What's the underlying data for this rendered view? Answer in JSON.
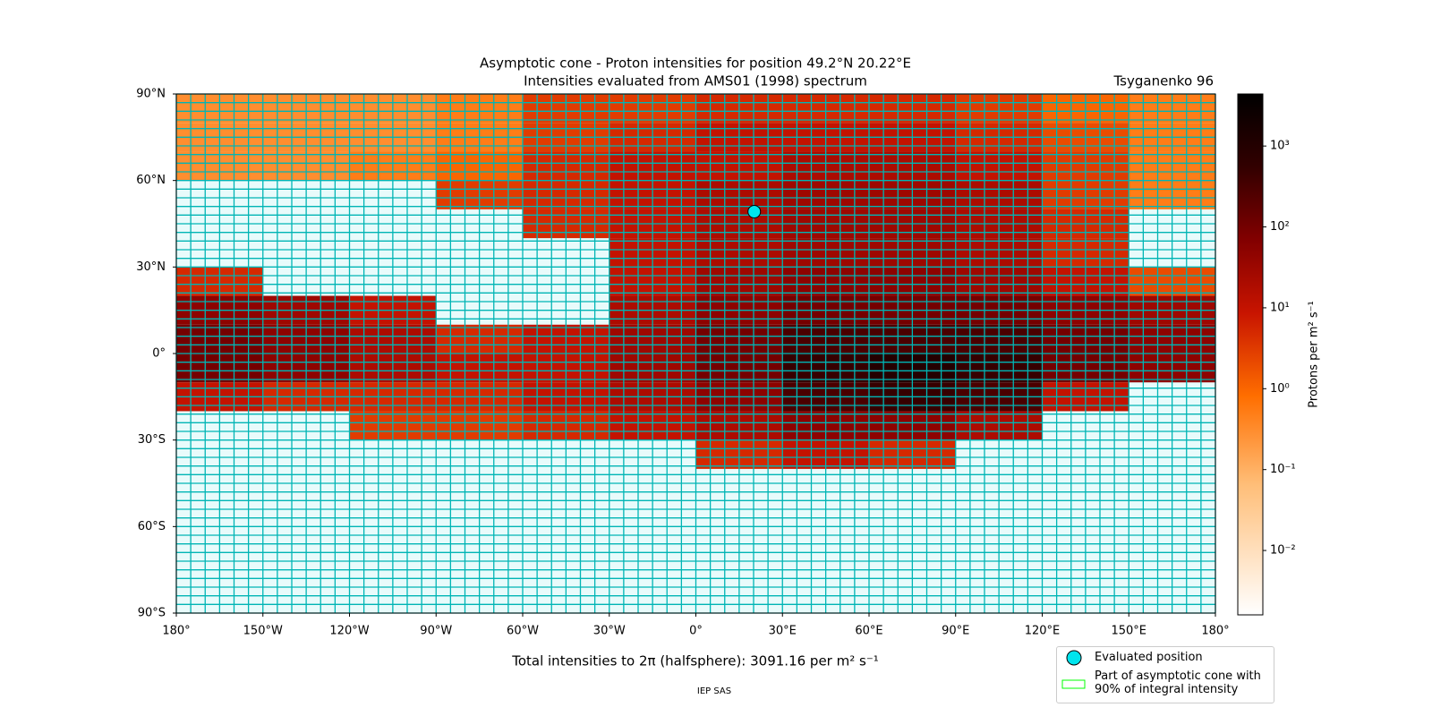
{
  "chart_data": {
    "type": "heatmap",
    "title": "Asymptotic cone - Proton intensities for position 49.2°N 20.22°E",
    "subtitle": "Intensities evaluated from AMS01 (1998) spectrum",
    "model": "Tsyganenko 96",
    "colorbar_label": "Protons per m² s⁻¹",
    "footer": "Total intensities to 2π (halfsphere): 3091.16 per m² s⁻¹",
    "credit": "IEP SAS",
    "lon_edges": [
      -180,
      -150,
      -120,
      -90,
      -60,
      -30,
      0,
      30,
      60,
      90,
      120,
      150,
      180
    ],
    "lat_edges": [
      90,
      80,
      70,
      60,
      50,
      40,
      30,
      20,
      10,
      0,
      -10,
      -20,
      -30,
      -40,
      -50,
      -60,
      -70,
      -80,
      -90
    ],
    "values": [
      [
        0.3,
        0.3,
        0.3,
        0.5,
        3,
        3,
        5,
        5,
        5,
        3,
        1,
        0.5
      ],
      [
        0.3,
        0.3,
        0.3,
        0.5,
        3,
        5,
        10,
        10,
        10,
        5,
        2,
        0.5
      ],
      [
        0.3,
        0.3,
        0.5,
        1,
        5,
        10,
        10,
        20,
        20,
        10,
        3,
        0.5
      ],
      [
        null,
        null,
        null,
        3,
        5,
        10,
        20,
        30,
        30,
        20,
        3,
        0.5
      ],
      [
        null,
        null,
        null,
        null,
        5,
        10,
        20,
        30,
        30,
        20,
        5,
        null
      ],
      [
        null,
        null,
        null,
        null,
        null,
        10,
        20,
        30,
        30,
        20,
        5,
        null
      ],
      [
        5,
        null,
        null,
        null,
        null,
        10,
        30,
        50,
        50,
        30,
        10,
        2
      ],
      [
        50,
        30,
        10,
        null,
        null,
        20,
        50,
        100,
        100,
        100,
        50,
        30
      ],
      [
        100,
        50,
        20,
        5,
        10,
        30,
        100,
        300,
        300,
        300,
        100,
        50
      ],
      [
        100,
        50,
        20,
        10,
        10,
        30,
        100,
        500,
        1000,
        500,
        100,
        50
      ],
      [
        10,
        5,
        5,
        5,
        10,
        20,
        50,
        300,
        500,
        300,
        10,
        null
      ],
      [
        null,
        null,
        3,
        3,
        5,
        10,
        20,
        50,
        50,
        20,
        null,
        null
      ],
      [
        null,
        null,
        null,
        null,
        null,
        null,
        5,
        10,
        5,
        null,
        null,
        null
      ],
      [
        null,
        null,
        null,
        null,
        null,
        null,
        null,
        null,
        null,
        null,
        null,
        null
      ],
      [
        null,
        null,
        null,
        null,
        null,
        null,
        null,
        null,
        null,
        null,
        null,
        null
      ],
      [
        null,
        null,
        null,
        null,
        null,
        null,
        null,
        null,
        null,
        null,
        null,
        null
      ],
      [
        null,
        null,
        null,
        null,
        null,
        null,
        null,
        null,
        null,
        null,
        null,
        null
      ],
      [
        null,
        null,
        null,
        null,
        null,
        null,
        null,
        null,
        null,
        null,
        null,
        null
      ]
    ],
    "xlim": [
      -180,
      180
    ],
    "ylim": [
      -90,
      90
    ],
    "xticks": [
      {
        "value": -180,
        "label": "180°"
      },
      {
        "value": -150,
        "label": "150°W"
      },
      {
        "value": -120,
        "label": "120°W"
      },
      {
        "value": -90,
        "label": "90°W"
      },
      {
        "value": -60,
        "label": "60°W"
      },
      {
        "value": -30,
        "label": "30°W"
      },
      {
        "value": 0,
        "label": "0°"
      },
      {
        "value": 30,
        "label": "30°E"
      },
      {
        "value": 60,
        "label": "60°E"
      },
      {
        "value": 90,
        "label": "90°E"
      },
      {
        "value": 120,
        "label": "120°E"
      },
      {
        "value": 150,
        "label": "150°E"
      },
      {
        "value": 180,
        "label": "180°"
      }
    ],
    "yticks": [
      {
        "value": 90,
        "label": "90°N"
      },
      {
        "value": 60,
        "label": "60°N"
      },
      {
        "value": 30,
        "label": "30°N"
      },
      {
        "value": 0,
        "label": "0°"
      },
      {
        "value": -30,
        "label": "30°S"
      },
      {
        "value": -60,
        "label": "60°S"
      },
      {
        "value": -90,
        "label": "90°S"
      }
    ],
    "clim": [
      0.0016,
      4400
    ],
    "color_scale": "log",
    "cticks": [
      {
        "value": 0.01,
        "label": "10⁻²"
      },
      {
        "value": 0.1,
        "label": "10⁻¹"
      },
      {
        "value": 1,
        "label": "10⁰"
      },
      {
        "value": 10,
        "label": "10¹"
      },
      {
        "value": 100,
        "label": "10²"
      },
      {
        "value": 1000,
        "label": "10³"
      }
    ],
    "grid_color": "#00b5b5",
    "position": {
      "lat": 49.2,
      "lon": 20.22
    },
    "marker_color": "#00e5ee",
    "cone_color": "#00ff00",
    "legend": [
      "Evaluated position",
      "Part of asymptotic cone with 90% of integral intensity"
    ]
  }
}
